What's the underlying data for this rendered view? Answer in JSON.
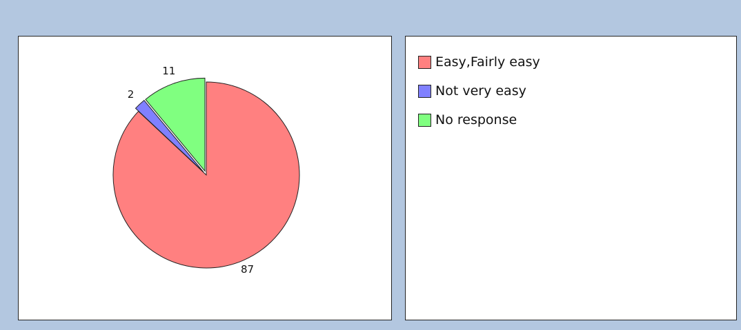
{
  "chart_data": {
    "type": "pie",
    "categories": [
      "Easy,Fairly easy",
      "Not very easy",
      "No response"
    ],
    "values": [
      87,
      2,
      11
    ],
    "colors": [
      "#ff8080",
      "#8080ff",
      "#80ff80"
    ],
    "legend": "top-left"
  }
}
